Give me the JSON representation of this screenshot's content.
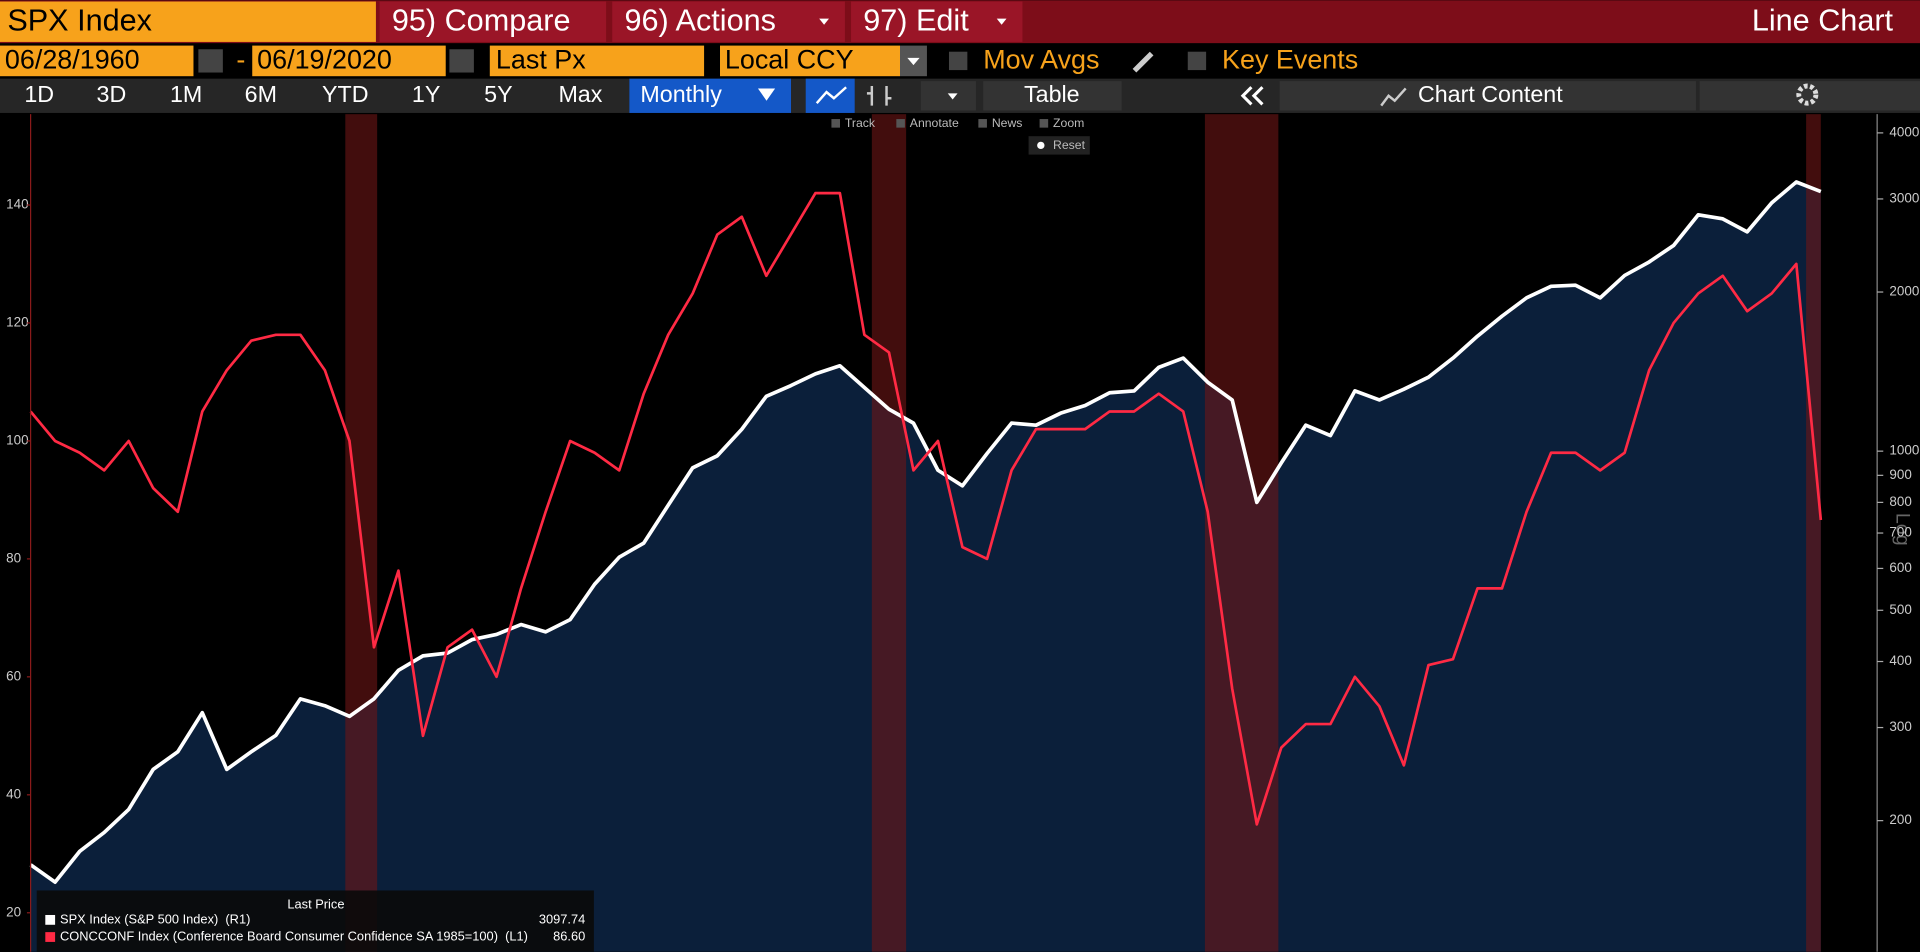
{
  "toolbar": {
    "security": "SPX Index",
    "compare": "95) Compare",
    "actions": "96) Actions",
    "edit": "97) Edit",
    "view": "Line Chart",
    "start_date": "06/28/1960",
    "date_separator": "-",
    "end_date": "06/19/2020",
    "field": "Last Px",
    "currency": "Local CCY",
    "mov_avgs": "Mov Avgs",
    "key_events": "Key Events",
    "periods": [
      "1D",
      "3D",
      "1M",
      "6M",
      "YTD",
      "1Y",
      "5Y",
      "Max"
    ],
    "frequency": "Monthly",
    "table": "Table",
    "chart_content": "Chart Content",
    "tools": [
      "Track",
      "Annotate",
      "News",
      "Zoom"
    ],
    "reset": "Reset"
  },
  "chart_data": {
    "type": "line",
    "y2log": true,
    "ylim": [
      13.4,
      155.4
    ],
    "yticks": [
      20,
      40,
      60,
      80,
      100,
      120,
      140
    ],
    "y2lim": [
      113,
      4340
    ],
    "y2ticks": [
      200,
      300,
      400,
      500,
      600,
      700,
      800,
      900,
      1000,
      2000,
      3000,
      4000
    ],
    "y2_label": "Log",
    "legend_title": "Last Price",
    "series": [
      {
        "name": "SPX Index (S&P 500 Index)  (R1)",
        "color": "#ffffff",
        "axis": "y2",
        "area_color": "#0b1f3a",
        "last_label": "3097.74",
        "values": [
          165,
          153,
          175,
          190,
          210,
          250,
          270,
          320,
          250,
          270,
          290,
          340,
          330,
          315,
          340,
          385,
          410,
          415,
          440,
          450,
          470,
          455,
          480,
          560,
          630,
          670,
          790,
          930,
          980,
          1100,
          1270,
          1330,
          1400,
          1450,
          1320,
          1200,
          1130,
          920,
          860,
          990,
          1130,
          1120,
          1180,
          1220,
          1290,
          1300,
          1440,
          1500,
          1350,
          1250,
          800,
          950,
          1120,
          1070,
          1300,
          1250,
          1310,
          1380,
          1500,
          1650,
          1800,
          1950,
          2050,
          2060,
          1950,
          2150,
          2280,
          2450,
          2800,
          2750,
          2600,
          2950,
          3230,
          3097.74
        ]
      },
      {
        "name": "CONCCONF Index (Conference Board Consumer Confidence SA 1985=100)  (L1)",
        "color": "#ff2a44",
        "axis": "y",
        "last_label": "86.60",
        "values": [
          105,
          100,
          98,
          95,
          100,
          92,
          88,
          105,
          112,
          117,
          118,
          118,
          112,
          100,
          65,
          78,
          50,
          65,
          68,
          60,
          75,
          88,
          100,
          98,
          95,
          108,
          118,
          125,
          135,
          138,
          128,
          135,
          142,
          142,
          118,
          115,
          95,
          100,
          82,
          80,
          95,
          102,
          102,
          102,
          105,
          105,
          108,
          105,
          88,
          58,
          35,
          48,
          52,
          52,
          60,
          55,
          45,
          62,
          63,
          75,
          75,
          88,
          98,
          98,
          95,
          98,
          112,
          120,
          125,
          128,
          122,
          125,
          130,
          86.6
        ]
      }
    ]
  }
}
